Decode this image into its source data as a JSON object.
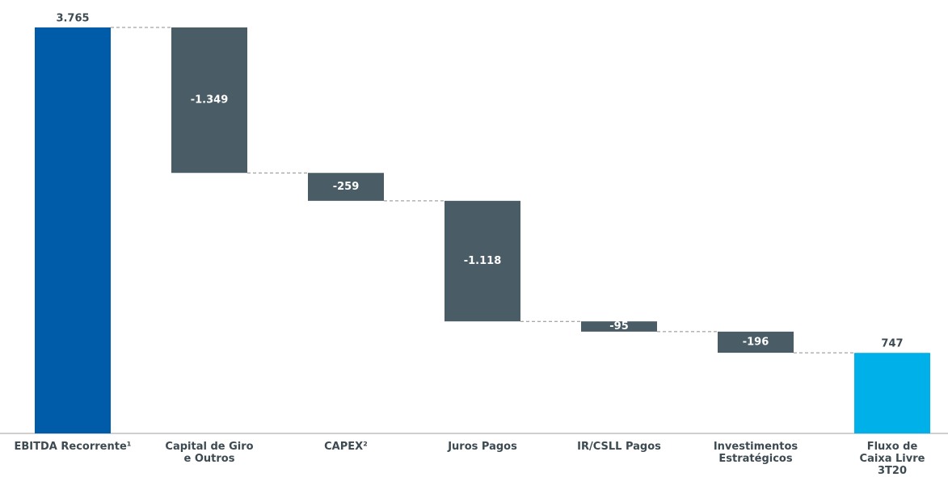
{
  "chart_data": {
    "type": "waterfall",
    "categories": [
      "EBITDA Recorrente¹",
      "Capital de Giro e Outros",
      "CAPEX²",
      "Juros Pagos",
      "IR/CSLL Pagos",
      "Investimentos Estratégicos",
      "Fluxo de Caixa Livre 3T20"
    ],
    "values": [
      3765,
      -1349,
      -259,
      -1118,
      -95,
      -196,
      747
    ],
    "value_labels": [
      "3.765",
      "-1.349",
      "-259",
      "-1.118",
      "-95",
      "-196",
      "747"
    ],
    "colors": [
      "#005ba8",
      "#4a5c66",
      "#4a5c66",
      "#4a5c66",
      "#4a5c66",
      "#4a5c66",
      "#00b0e8"
    ]
  }
}
